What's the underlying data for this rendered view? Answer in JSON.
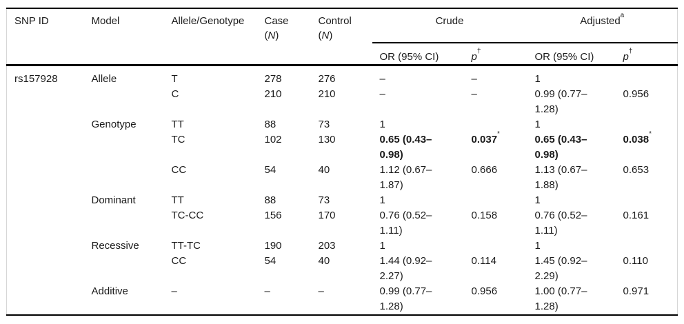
{
  "table": {
    "header": {
      "snp_id": "SNP ID",
      "model": "Model",
      "allele_genotype": "Allele/Genotype",
      "case_line1": "Case",
      "control_line1": "Control",
      "n_open": "(",
      "n_italic": "N",
      "n_close": ")",
      "crude": "Crude",
      "adjusted": "Adjusted",
      "adjusted_sup": "a",
      "or_ci": "OR (95% CI)",
      "p": "p",
      "p_dagger": "†"
    },
    "rows": [
      {
        "snp": "rs157928",
        "model": "Allele",
        "geno": "T",
        "case": "278",
        "control": "276",
        "c_or": "–",
        "c_p": "–",
        "c_p_sup": "",
        "a_or": "1",
        "a_p": "",
        "a_p_sup": ""
      },
      {
        "snp": "",
        "model": "",
        "geno": "C",
        "case": "210",
        "control": "210",
        "c_or": "–",
        "c_p": "–",
        "c_p_sup": "",
        "a_or": "0.99 (0.77–\n1.28)",
        "a_p": "0.956",
        "a_p_sup": ""
      },
      {
        "snp": "",
        "model": "Genotype",
        "geno": "TT",
        "case": "88",
        "control": "73",
        "c_or": "1",
        "c_p": "",
        "c_p_sup": "",
        "a_or": "1",
        "a_p": "",
        "a_p_sup": ""
      },
      {
        "snp": "",
        "model": "",
        "geno": "TC",
        "case": "102",
        "control": "130",
        "c_or": "0.65 (0.43–\n0.98)",
        "c_p": "0.037",
        "c_p_sup": "*",
        "a_or": "0.65 (0.43–\n0.98)",
        "a_p": "0.038",
        "a_p_sup": "*"
      },
      {
        "snp": "",
        "model": "",
        "geno": "CC",
        "case": "54",
        "control": "40",
        "c_or": "1.12 (0.67–\n1.87)",
        "c_p": "0.666",
        "c_p_sup": "",
        "a_or": "1.13 (0.67–\n1.88)",
        "a_p": "0.653",
        "a_p_sup": ""
      },
      {
        "snp": "",
        "model": "Dominant",
        "geno": "TT",
        "case": "88",
        "control": "73",
        "c_or": "1",
        "c_p": "",
        "c_p_sup": "",
        "a_or": "1",
        "a_p": "",
        "a_p_sup": ""
      },
      {
        "snp": "",
        "model": "",
        "geno": "TC-CC",
        "case": "156",
        "control": "170",
        "c_or": "0.76 (0.52–\n1.11)",
        "c_p": "0.158",
        "c_p_sup": "",
        "a_or": "0.76 (0.52–\n1.11)",
        "a_p": "0.161",
        "a_p_sup": ""
      },
      {
        "snp": "",
        "model": "Recessive",
        "geno": "TT-TC",
        "case": "190",
        "control": "203",
        "c_or": "1",
        "c_p": "",
        "c_p_sup": "",
        "a_or": "1",
        "a_p": "",
        "a_p_sup": ""
      },
      {
        "snp": "",
        "model": "",
        "geno": "CC",
        "case": "54",
        "control": "40",
        "c_or": "1.44 (0.92–\n2.27)",
        "c_p": "0.114",
        "c_p_sup": "",
        "a_or": "1.45 (0.92–\n2.29)",
        "a_p": "0.110",
        "a_p_sup": ""
      },
      {
        "snp": "",
        "model": "Additive",
        "geno": "–",
        "case": "–",
        "control": "–",
        "c_or": "0.99 (0.77–\n1.28)",
        "c_p": "0.956",
        "c_p_sup": "",
        "a_or": "1.00 (0.77–\n1.28)",
        "a_p": "0.971",
        "a_p_sup": ""
      }
    ]
  }
}
